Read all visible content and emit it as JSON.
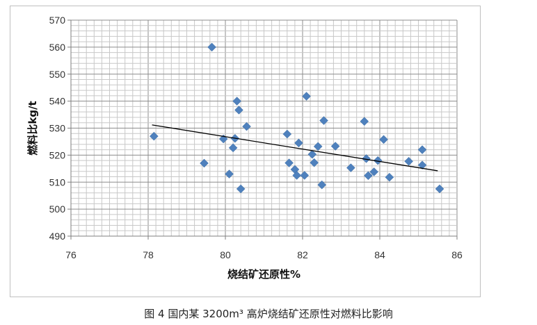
{
  "chart_data": {
    "type": "scatter",
    "xlabel": "烧结矿还原性%",
    "ylabel": "燃料比kg/t",
    "xlim": [
      76,
      86
    ],
    "ylim": [
      490,
      570
    ],
    "x_ticks": [
      76,
      78,
      80,
      82,
      84,
      86
    ],
    "y_ticks": [
      490,
      500,
      510,
      520,
      530,
      540,
      550,
      560,
      570
    ],
    "grid": true,
    "legend": "none",
    "marker_color": "#4f81bd",
    "trendline_color": "#000000",
    "trendline": {
      "x": [
        78.1,
        85.5
      ],
      "y": [
        531.2,
        514.2
      ]
    },
    "points": [
      {
        "x": 78.15,
        "y": 527.0
      },
      {
        "x": 79.45,
        "y": 517.0
      },
      {
        "x": 79.65,
        "y": 560.0
      },
      {
        "x": 79.95,
        "y": 526.0
      },
      {
        "x": 80.1,
        "y": 513.0
      },
      {
        "x": 80.2,
        "y": 522.7
      },
      {
        "x": 80.25,
        "y": 526.2
      },
      {
        "x": 80.3,
        "y": 540.0
      },
      {
        "x": 80.35,
        "y": 536.7
      },
      {
        "x": 80.4,
        "y": 507.5
      },
      {
        "x": 80.55,
        "y": 530.6
      },
      {
        "x": 81.6,
        "y": 527.8
      },
      {
        "x": 81.65,
        "y": 517.1
      },
      {
        "x": 81.8,
        "y": 514.7
      },
      {
        "x": 81.85,
        "y": 512.5
      },
      {
        "x": 81.9,
        "y": 524.5
      },
      {
        "x": 82.05,
        "y": 512.5
      },
      {
        "x": 82.1,
        "y": 541.8
      },
      {
        "x": 82.25,
        "y": 520.3
      },
      {
        "x": 82.3,
        "y": 517.2
      },
      {
        "x": 82.4,
        "y": 523.2
      },
      {
        "x": 82.5,
        "y": 509.0
      },
      {
        "x": 82.55,
        "y": 532.8
      },
      {
        "x": 82.85,
        "y": 523.3
      },
      {
        "x": 83.25,
        "y": 515.3
      },
      {
        "x": 83.6,
        "y": 532.5
      },
      {
        "x": 83.65,
        "y": 518.7
      },
      {
        "x": 83.7,
        "y": 512.4
      },
      {
        "x": 83.85,
        "y": 513.8
      },
      {
        "x": 83.95,
        "y": 518.0
      },
      {
        "x": 84.1,
        "y": 525.8
      },
      {
        "x": 84.25,
        "y": 511.8
      },
      {
        "x": 84.75,
        "y": 517.7
      },
      {
        "x": 85.1,
        "y": 516.3
      },
      {
        "x": 85.1,
        "y": 522.0
      },
      {
        "x": 85.55,
        "y": 507.5
      }
    ]
  },
  "caption": "图 4 国内某 3200m³ 高炉烧结矿还原性对燃料比影响"
}
